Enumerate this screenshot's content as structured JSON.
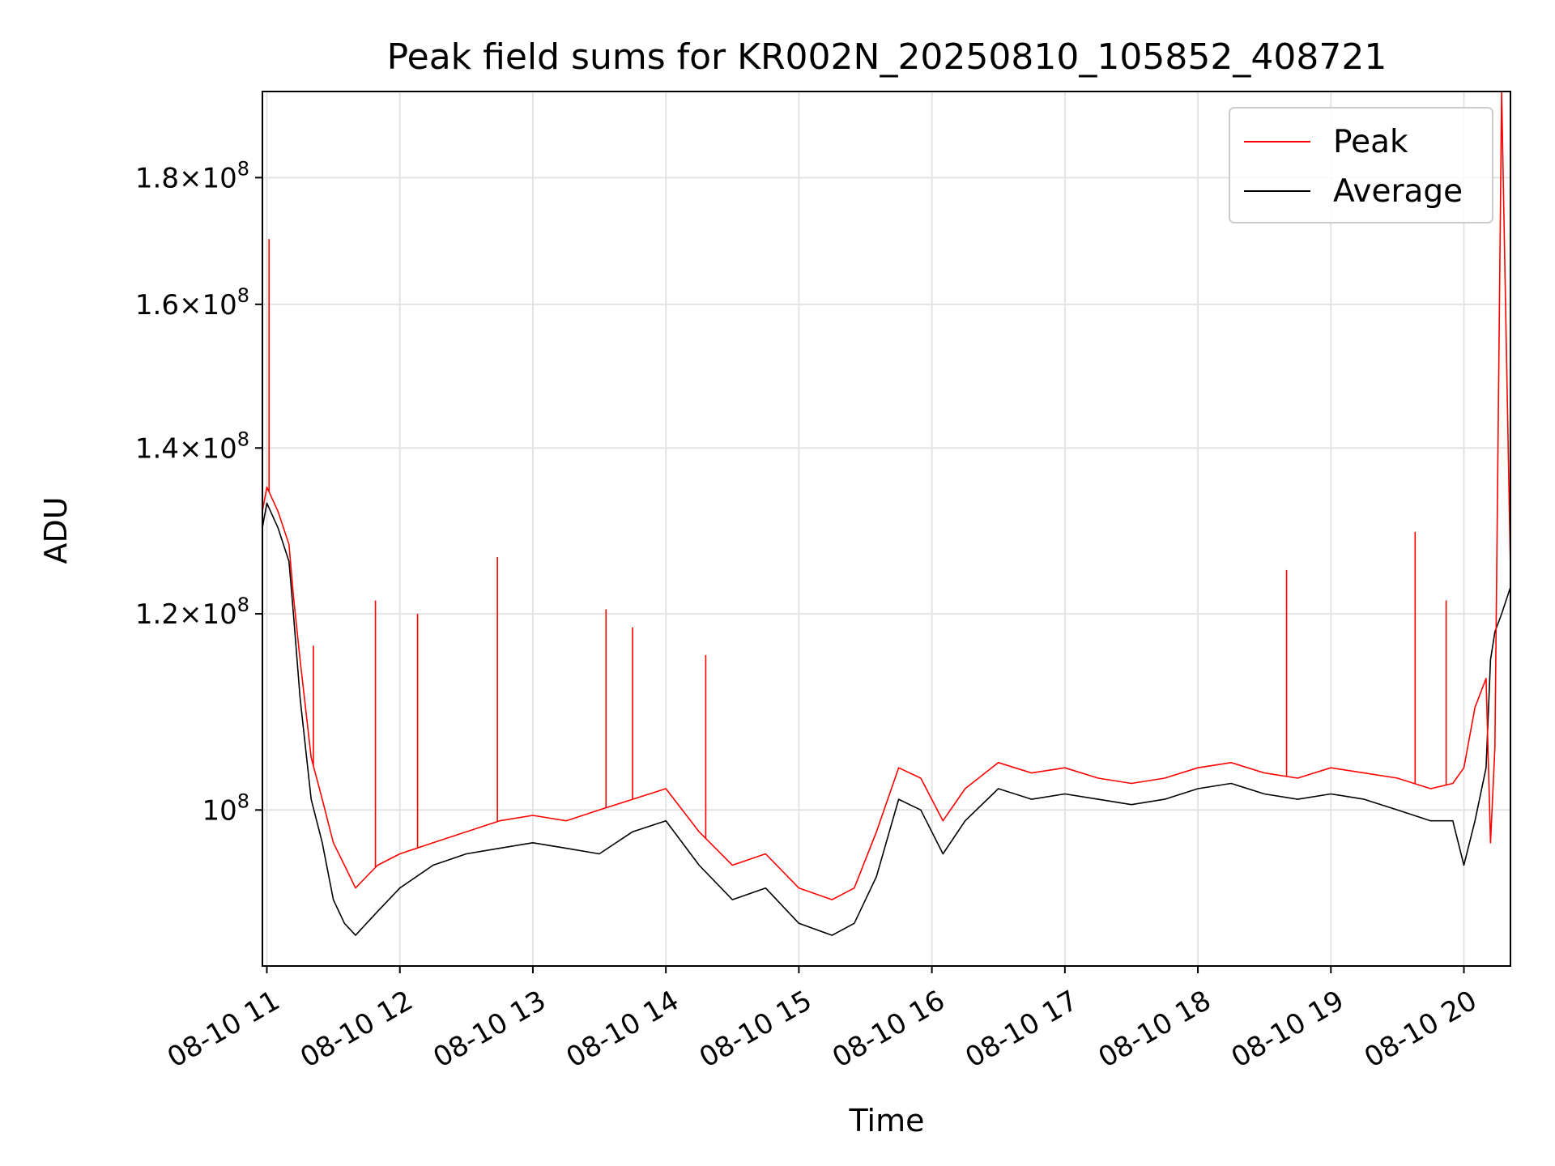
{
  "chart_data": {
    "type": "line",
    "title": "Peak field sums for KR002N_20250810_105852_408721",
    "xlabel": "Time",
    "ylabel": "ADU",
    "yscale": "log",
    "xlim": [
      "2025-08-10 10:58",
      "2025-08-10 20:21"
    ],
    "ylim": [
      86500000,
      195000000
    ],
    "x_ticks": [
      "08-10 11",
      "08-10 12",
      "08-10 13",
      "08-10 14",
      "08-10 15",
      "08-10 16",
      "08-10 17",
      "08-10 18",
      "08-10 19",
      "08-10 20"
    ],
    "y_ticks": [
      {
        "value": 100000000,
        "mantissa": "",
        "exponent": "8"
      },
      {
        "value": 120000000,
        "mantissa": "1.2",
        "exponent": "8"
      },
      {
        "value": 140000000,
        "mantissa": "1.4",
        "exponent": "8"
      },
      {
        "value": 160000000,
        "mantissa": "1.6",
        "exponent": "8"
      },
      {
        "value": 180000000,
        "mantissa": "1.8",
        "exponent": "8"
      }
    ],
    "grid": true,
    "legend_position": "top-right",
    "x": [
      "2025-08-10 10:58",
      "2025-08-10 11:00",
      "2025-08-10 11:05",
      "2025-08-10 11:10",
      "2025-08-10 11:12",
      "2025-08-10 11:15",
      "2025-08-10 11:20",
      "2025-08-10 11:25",
      "2025-08-10 11:30",
      "2025-08-10 11:35",
      "2025-08-10 11:40",
      "2025-08-10 11:45",
      "2025-08-10 11:50",
      "2025-08-10 12:00",
      "2025-08-10 12:15",
      "2025-08-10 12:30",
      "2025-08-10 12:45",
      "2025-08-10 13:00",
      "2025-08-10 13:15",
      "2025-08-10 13:30",
      "2025-08-10 13:45",
      "2025-08-10 14:00",
      "2025-08-10 14:15",
      "2025-08-10 14:30",
      "2025-08-10 14:45",
      "2025-08-10 15:00",
      "2025-08-10 15:15",
      "2025-08-10 15:25",
      "2025-08-10 15:35",
      "2025-08-10 15:45",
      "2025-08-10 15:55",
      "2025-08-10 16:05",
      "2025-08-10 16:15",
      "2025-08-10 16:30",
      "2025-08-10 16:45",
      "2025-08-10 17:00",
      "2025-08-10 17:15",
      "2025-08-10 17:30",
      "2025-08-10 17:45",
      "2025-08-10 18:00",
      "2025-08-10 18:15",
      "2025-08-10 18:30",
      "2025-08-10 18:45",
      "2025-08-10 19:00",
      "2025-08-10 19:15",
      "2025-08-10 19:30",
      "2025-08-10 19:45",
      "2025-08-10 19:55",
      "2025-08-10 20:00",
      "2025-08-10 20:05",
      "2025-08-10 20:10",
      "2025-08-10 20:12",
      "2025-08-10 20:14",
      "2025-08-10 20:17",
      "2025-08-10 20:21"
    ],
    "series": [
      {
        "name": "Peak",
        "color": "#ff0000",
        "values": [
          132000000,
          135000000,
          132000000,
          128000000,
          122000000,
          115000000,
          105000000,
          101000000,
          97000000,
          95000000,
          93000000,
          94000000,
          95000000,
          96000000,
          97000000,
          98000000,
          99000000,
          99500000,
          99000000,
          100000000,
          101000000,
          102000000,
          98000000,
          95000000,
          96000000,
          93000000,
          92000000,
          93000000,
          98000000,
          104000000,
          103000000,
          99000000,
          102000000,
          104500000,
          103500000,
          104000000,
          103000000,
          102500000,
          103000000,
          104000000,
          104500000,
          103500000,
          103000000,
          104000000,
          103500000,
          103000000,
          102000000,
          102500000,
          104000000,
          110000000,
          113000000,
          97000000,
          106000000,
          195000000,
          125000000
        ],
        "spikes": [
          {
            "x": "2025-08-10 11:01",
            "y": 170000000
          },
          {
            "x": "2025-08-10 11:21",
            "y": 116500000
          },
          {
            "x": "2025-08-10 11:49",
            "y": 121500000
          },
          {
            "x": "2025-08-10 12:08",
            "y": 120000000
          },
          {
            "x": "2025-08-10 12:44",
            "y": 126500000
          },
          {
            "x": "2025-08-10 13:33",
            "y": 120500000
          },
          {
            "x": "2025-08-10 13:45",
            "y": 118500000
          },
          {
            "x": "2025-08-10 14:18",
            "y": 115500000
          },
          {
            "x": "2025-08-10 18:40",
            "y": 125000000
          },
          {
            "x": "2025-08-10 19:38",
            "y": 129500000
          },
          {
            "x": "2025-08-10 19:52",
            "y": 121500000
          }
        ]
      },
      {
        "name": "Average",
        "color": "#000000",
        "values": [
          130000000,
          133000000,
          130000000,
          126000000,
          120000000,
          111000000,
          101000000,
          97000000,
          92000000,
          90000000,
          89000000,
          90000000,
          91000000,
          93000000,
          95000000,
          96000000,
          96500000,
          97000000,
          96500000,
          96000000,
          98000000,
          99000000,
          95000000,
          92000000,
          93000000,
          90000000,
          89000000,
          90000000,
          94000000,
          101000000,
          100000000,
          96000000,
          99000000,
          102000000,
          101000000,
          101500000,
          101000000,
          100500000,
          101000000,
          102000000,
          102500000,
          101500000,
          101000000,
          101500000,
          101000000,
          100000000,
          99000000,
          99000000,
          95000000,
          99000000,
          104000000,
          115000000,
          118000000,
          120000000,
          123000000
        ]
      }
    ]
  }
}
